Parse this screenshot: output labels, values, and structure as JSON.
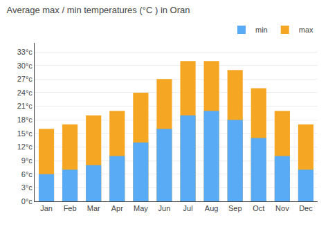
{
  "chart_data": {
    "type": "bar",
    "title": "Average max / min temperatures (°C ) in Oran",
    "categories": [
      "Jan",
      "Feb",
      "Mar",
      "Apr",
      "May",
      "Jun",
      "Jul",
      "Aug",
      "Sep",
      "Oct",
      "Nov",
      "Dec"
    ],
    "series": [
      {
        "name": "max",
        "color": "#f5a623",
        "values": [
          16,
          17,
          19,
          20,
          24,
          27,
          31,
          31,
          29,
          25,
          20,
          17
        ]
      },
      {
        "name": "min",
        "color": "#5aabf5",
        "values": [
          6,
          7,
          8,
          10,
          13,
          16,
          19,
          20,
          18,
          14,
          10,
          7
        ]
      }
    ],
    "ylim": [
      0,
      35
    ],
    "yticks": [
      {
        "value": 0,
        "label": "0°c"
      },
      {
        "value": 3,
        "label": "3°c"
      },
      {
        "value": 6,
        "label": "6°c"
      },
      {
        "value": 9,
        "label": "9°c"
      },
      {
        "value": 12,
        "label": "12°c"
      },
      {
        "value": 15,
        "label": "15°c"
      },
      {
        "value": 18,
        "label": "18°c"
      },
      {
        "value": 21,
        "label": "21°c"
      },
      {
        "value": 24,
        "label": "24°c"
      },
      {
        "value": 27,
        "label": "27°c"
      },
      {
        "value": 30,
        "label": "30°c"
      },
      {
        "value": 33,
        "label": "33°c"
      }
    ],
    "grid": true,
    "legend": "upper right"
  }
}
